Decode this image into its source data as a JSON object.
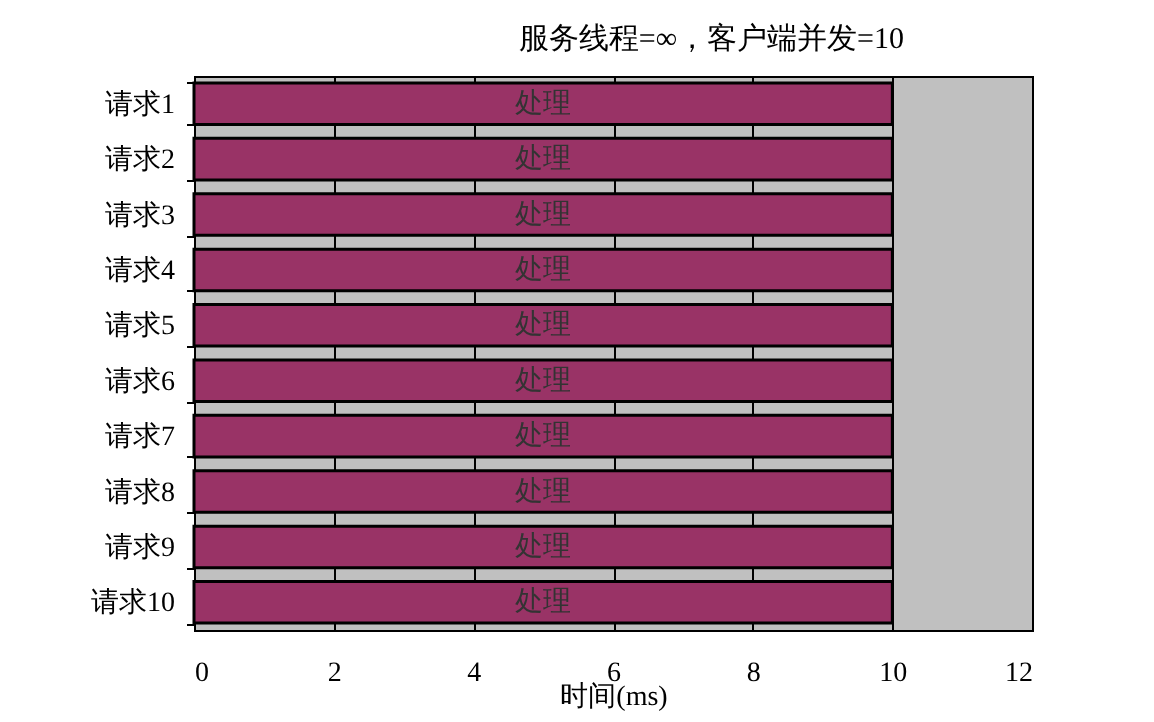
{
  "chart_data": {
    "type": "bar",
    "orientation": "horizontal",
    "title": "服务线程=∞，客户端并发=10",
    "xlabel": "时间(ms)",
    "categories": [
      "请求1",
      "请求2",
      "请求3",
      "请求4",
      "请求5",
      "请求6",
      "请求7",
      "请求8",
      "请求9",
      "请求10"
    ],
    "values": [
      10,
      10,
      10,
      10,
      10,
      10,
      10,
      10,
      10,
      10
    ],
    "value_labels": [
      "处理",
      "处理",
      "处理",
      "处理",
      "处理",
      "处理",
      "处理",
      "处理",
      "处理",
      "处理"
    ],
    "color": "#993366",
    "xlim": [
      0,
      12
    ],
    "xticks": [
      0,
      2,
      4,
      6,
      8,
      10,
      12
    ],
    "grid": "x"
  }
}
